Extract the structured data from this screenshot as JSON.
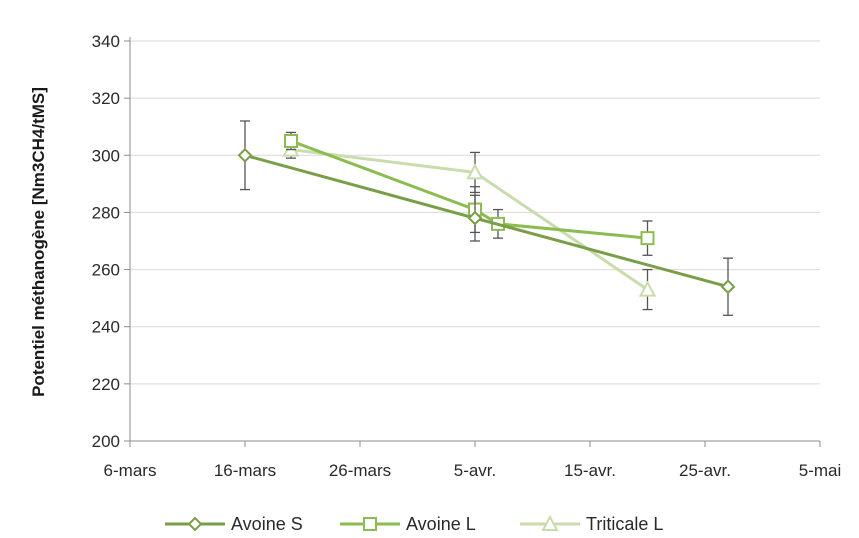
{
  "chart_data": {
    "type": "line",
    "title": "",
    "xlabel": "",
    "ylabel": "Potentiel méthanogène [Nm3CH4/tMS]",
    "x_ticks": [
      "6-mars",
      "16-mars",
      "26-mars",
      "5-avr.",
      "15-avr.",
      "25-avr.",
      "5-mai"
    ],
    "xlim": [
      "6-mars",
      "5-mai"
    ],
    "ylim": [
      200,
      340
    ],
    "y_ticks": [
      200,
      220,
      240,
      260,
      280,
      300,
      320,
      340
    ],
    "grid": "horizontal",
    "legend": "bottom",
    "series": [
      {
        "name": "Avoine S",
        "marker": "diamond",
        "color": "#7a9e48",
        "points": [
          {
            "x": "16-mars",
            "y": 300,
            "err": 12
          },
          {
            "x": "5-avr.",
            "y": 278,
            "err": 8
          },
          {
            "x": "27-avr.",
            "y": 254,
            "err": 10
          }
        ]
      },
      {
        "name": "Avoine L",
        "marker": "square",
        "color": "#8cbc50",
        "points": [
          {
            "x": "20-mars",
            "y": 305,
            "err": 3
          },
          {
            "x": "5-avr.",
            "y": 281,
            "err": 8
          },
          {
            "x": "7-avr.",
            "y": 276,
            "err": 5
          },
          {
            "x": "20-avr.",
            "y": 271,
            "err": 6
          }
        ]
      },
      {
        "name": "Triticale L",
        "marker": "triangle",
        "color": "#c8dcac",
        "points": [
          {
            "x": "20-mars",
            "y": 302,
            "err": 3
          },
          {
            "x": "5-avr.",
            "y": 294,
            "err": 7
          },
          {
            "x": "20-avr.",
            "y": 253,
            "err": 7
          }
        ]
      }
    ]
  }
}
